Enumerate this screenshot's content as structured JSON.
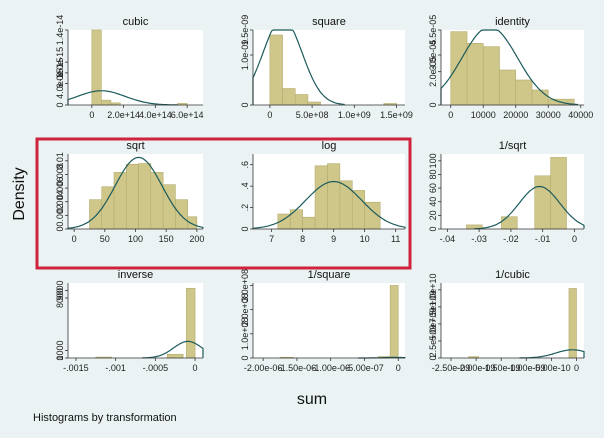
{
  "figure": {
    "ylabel": "Density",
    "xlabel": "sum",
    "note": "Histograms by transformation",
    "colors": {
      "background": "#eaf2f3",
      "plot_background": "#ffffff",
      "bar_fill": "#cfc78a",
      "bar_stroke": "#b3ac6d",
      "curve": "#1d5b5c",
      "highlight_box": "#d0223f"
    },
    "highlight": {
      "panels": [
        "sqrt",
        "log"
      ],
      "shape": "rectangle"
    }
  },
  "chart_data": [
    {
      "type": "histogram",
      "title": "cubic",
      "xlim": [
        -150000000000000.0,
        700000000000000.0
      ],
      "ylim": [
        0,
        1.4e-14
      ],
      "xticks": [
        0,
        200000000000000.0,
        400000000000000.0,
        600000000000000.0
      ],
      "xtick_labels": [
        "0",
        "2.0e+14",
        "4.0e+14",
        "6.0e+14"
      ],
      "yticks": [
        0,
        4e-15,
        6e-15,
        8e-15,
        1.4e-14
      ],
      "ytick_labels": [
        "0",
        "4.0e-15",
        "6.0e-15",
        "8.0e-15",
        "1.4e-14"
      ],
      "bins": [
        [
          0,
          60000000000000.0,
          1.4e-14
        ],
        [
          60000000000000.0,
          120000000000000.0,
          9e-16
        ],
        [
          120000000000000.0,
          180000000000000.0,
          4e-16
        ],
        [
          540000000000000.0,
          600000000000000.0,
          3e-16
        ]
      ],
      "curve": {
        "mean": 60000000000000.0,
        "sd": 150000000000000.0
      }
    },
    {
      "type": "histogram",
      "title": "square",
      "xlim": [
        -200000000.0,
        1600000000.0
      ],
      "ylim": [
        0,
        1.5e-09
      ],
      "xticks": [
        0,
        500000000.0,
        1000000000.0,
        1500000000.0
      ],
      "xtick_labels": [
        "0",
        "5.0e+08",
        "1.0e+09",
        "1.5e+09"
      ],
      "yticks": [
        0,
        1e-09,
        1.5e-09
      ],
      "ytick_labels": [
        "0",
        "1.0e-09",
        "1.5e-09"
      ],
      "bins": [
        [
          0,
          150000000.0,
          1.4e-09
        ],
        [
          150000000.0,
          300000000.0,
          3.3e-10
        ],
        [
          300000000.0,
          450000000.0,
          2.1e-10
        ],
        [
          450000000.0,
          600000000.0,
          6e-11
        ],
        [
          1350000000.0,
          1500000000.0,
          3e-11
        ]
      ],
      "curve": {
        "mean": 150000000.0,
        "sd": 230000000.0
      }
    },
    {
      "type": "histogram",
      "title": "identity",
      "xlim": [
        -3000,
        41000
      ],
      "ylim": [
        0,
        4.5e-05
      ],
      "xticks": [
        0,
        10000,
        20000,
        30000,
        40000
      ],
      "xtick_labels": [
        "0",
        "10000",
        "20000",
        "30000",
        "40000"
      ],
      "yticks": [
        0,
        2e-05,
        3e-05,
        4.5e-05
      ],
      "ytick_labels": [
        "0",
        "2.0e-05",
        "3.0e-05",
        "4.5e-05"
      ],
      "bins": [
        [
          0,
          5000,
          4.4e-05
        ],
        [
          5000,
          10000,
          3.7e-05
        ],
        [
          10000,
          15000,
          3.5e-05
        ],
        [
          15000,
          20000,
          2.1e-05
        ],
        [
          20000,
          25000,
          1.5e-05
        ],
        [
          25000,
          30000,
          9e-06
        ],
        [
          30000,
          38000,
          3.5e-06
        ]
      ],
      "curve": {
        "mean": 12000,
        "sd": 8500
      }
    },
    {
      "type": "histogram",
      "title": "sqrt",
      "xlim": [
        -10,
        210
      ],
      "ylim": [
        0,
        0.011
      ],
      "xticks": [
        0,
        50,
        100,
        150,
        200
      ],
      "xtick_labels": [
        "0",
        "50",
        "100",
        "150",
        "200"
      ],
      "yticks": [
        0,
        0.002,
        0.004,
        0.006,
        0.008,
        0.01
      ],
      "ytick_labels": [
        "0",
        "0.002",
        "0.004",
        "0.006",
        "0.008",
        "0.01"
      ],
      "bins": [
        [
          25,
          45,
          0.0043
        ],
        [
          45,
          65,
          0.0062
        ],
        [
          65,
          85,
          0.0083
        ],
        [
          85,
          105,
          0.0095
        ],
        [
          105,
          125,
          0.0096
        ],
        [
          125,
          145,
          0.0083
        ],
        [
          145,
          165,
          0.0065
        ],
        [
          165,
          185,
          0.0043
        ],
        [
          185,
          200,
          0.0018
        ]
      ],
      "curve": {
        "mean": 105,
        "sd": 38
      }
    },
    {
      "type": "histogram",
      "title": "log",
      "xlim": [
        6.4,
        11.3
      ],
      "ylim": [
        0,
        0.7
      ],
      "xticks": [
        7,
        8,
        9,
        10,
        11
      ],
      "xtick_labels": [
        "7",
        "8",
        "9",
        "10",
        "11"
      ],
      "yticks": [
        0,
        0.2,
        0.4,
        0.6
      ],
      "ytick_labels": [
        "0",
        ".2",
        ".4",
        ".6"
      ],
      "bins": [
        [
          7.2,
          7.6,
          0.14
        ],
        [
          7.6,
          8.0,
          0.18
        ],
        [
          8.0,
          8.4,
          0.11
        ],
        [
          8.4,
          8.8,
          0.59
        ],
        [
          8.8,
          9.2,
          0.61
        ],
        [
          9.2,
          9.6,
          0.45
        ],
        [
          9.6,
          10.0,
          0.36
        ],
        [
          10.0,
          10.5,
          0.25
        ]
      ],
      "curve": {
        "mean": 9.0,
        "sd": 0.9
      }
    },
    {
      "type": "histogram",
      "title": "1/sqrt",
      "xlim": [
        -0.042,
        0.003
      ],
      "ylim": [
        0,
        110
      ],
      "xticks": [
        -0.04,
        -0.03,
        -0.02,
        -0.01,
        0
      ],
      "xtick_labels": [
        "-.04",
        "-.03",
        "-.02",
        "-.01",
        "0"
      ],
      "yticks": [
        0,
        20,
        40,
        60,
        80,
        100
      ],
      "ytick_labels": [
        "0",
        "20",
        "40",
        "60",
        "80",
        "100"
      ],
      "bins": [
        [
          -0.034,
          -0.029,
          6
        ],
        [
          -0.023,
          -0.018,
          18
        ],
        [
          -0.0125,
          -0.0075,
          78
        ],
        [
          -0.0075,
          -0.0025,
          105
        ]
      ],
      "curve": {
        "mean": -0.011,
        "sd": 0.0064
      }
    },
    {
      "type": "histogram",
      "title": "inverse",
      "xlim": [
        -0.0016,
        0.0001
      ],
      "ylim": [
        0,
        10000
      ],
      "xticks": [
        -0.0015,
        -0.001,
        -0.0005,
        0
      ],
      "xtick_labels": [
        "-.0015",
        "-.001",
        "-.0005",
        "0"
      ],
      "yticks": [
        0,
        1000,
        8000,
        9000
      ],
      "ytick_labels": [
        "0",
        "1000",
        "8000",
        "9000"
      ],
      "bins": [
        [
          -0.00125,
          -0.00105,
          120
        ],
        [
          -0.00035,
          -0.00015,
          500
        ],
        [
          -0.00011,
          0.0,
          9300
        ]
      ],
      "curve": {
        "mean": -9e-05,
        "sd": 0.00018
      }
    },
    {
      "type": "histogram",
      "title": "1/square",
      "xlim": [
        -2.15e-06,
        1e-07
      ],
      "ylim": [
        0,
        310000000.0
      ],
      "xticks": [
        -2e-06,
        -1.5e-06,
        -1e-06,
        -5e-07,
        0
      ],
      "xtick_labels": [
        "-2.00e-06",
        "-1.50e-06",
        "-1.00e-06",
        "-5.00e-07",
        "0"
      ],
      "yticks": [
        0,
        100000000.0,
        200000000.0,
        300000000.0
      ],
      "ytick_labels": [
        "0",
        "1.0e+08",
        "2.0e+08",
        "3.0e+08"
      ],
      "bins": [
        [
          -1.75e-06,
          -1.55e-06,
          3000000.0
        ],
        [
          -3e-07,
          -1.2e-07,
          6000000.0
        ],
        [
          -1.2e-07,
          0.0,
          300000000.0
        ]
      ],
      "curve": {
        "mean": -5e-08,
        "sd": 1.7e-07
      }
    },
    {
      "type": "histogram",
      "title": "1/cubic",
      "xlim": [
        -2.7e-09,
        1.5e-10
      ],
      "ylim": [
        0,
        11000000000.0
      ],
      "xticks": [
        -2.5e-09,
        -2e-09,
        -1.5e-09,
        -1e-09,
        -5e-10,
        0
      ],
      "xtick_labels": [
        "-2.50e-09",
        "-2.00e-09",
        "-1.50e-09",
        "-1.00e-09",
        "-5.00e-10",
        "0"
      ],
      "yticks": [
        0,
        2500000000.0,
        5000000000.0,
        7500000000.0,
        10000000000.0
      ],
      "ytick_labels": [
        "0",
        "2.5e+09",
        "5.0e+09",
        "7.5e+09",
        "1.0e+10"
      ],
      "bins": [
        [
          -2.15e-09,
          -1.95e-09,
          200000000.0
        ],
        [
          -1.5e-10,
          0.0,
          10200000000.0
        ]
      ],
      "curve": {
        "mean": -8e-11,
        "sd": 3.3e-10
      }
    }
  ]
}
